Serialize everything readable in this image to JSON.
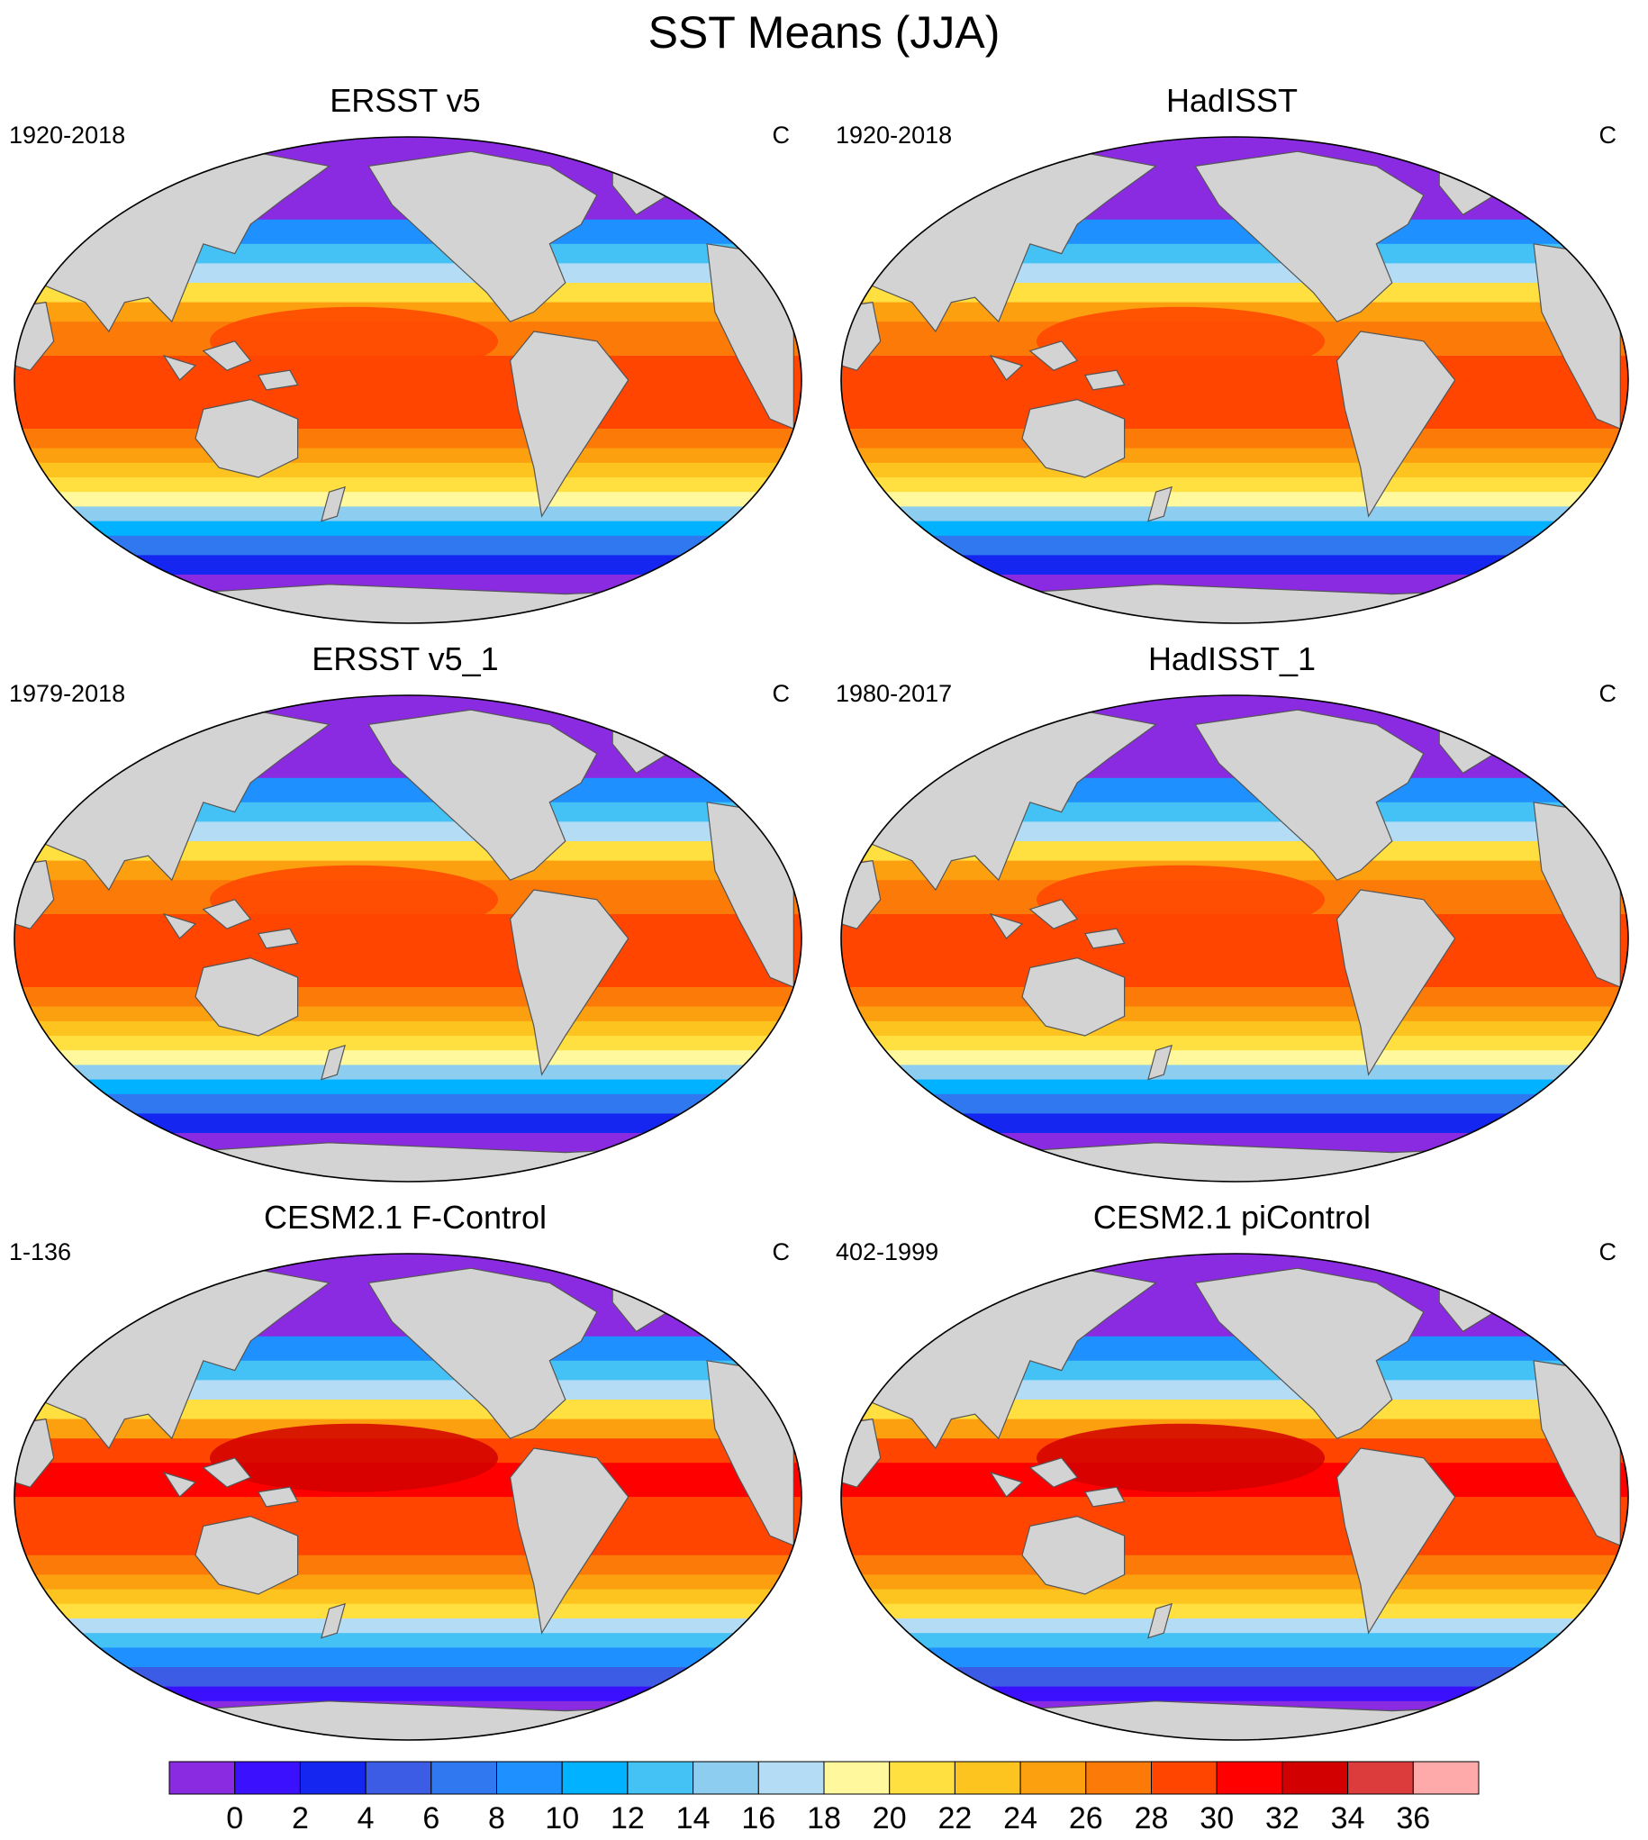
{
  "figure": {
    "title": "SST Means (JJA)"
  },
  "panels": [
    {
      "title": "ERSST v5",
      "left_label": "1920-2018",
      "right_label": "C",
      "style": "obs"
    },
    {
      "title": "HadISST",
      "left_label": "1920-2018",
      "right_label": "C",
      "style": "obs"
    },
    {
      "title": "ERSST v5_1",
      "left_label": "1979-2018",
      "right_label": "C",
      "style": "obs"
    },
    {
      "title": "HadISST_1",
      "left_label": "1980-2017",
      "right_label": "C",
      "style": "obs"
    },
    {
      "title": "CESM2.1 F-Control",
      "left_label": "1-136",
      "right_label": "C",
      "style": "model"
    },
    {
      "title": "CESM2.1 piControl",
      "left_label": "402-1999",
      "right_label": "C",
      "style": "model"
    }
  ],
  "colorbar": {
    "levels": [
      "0",
      "2",
      "4",
      "6",
      "8",
      "10",
      "12",
      "14",
      "16",
      "18",
      "20",
      "22",
      "24",
      "26",
      "28",
      "30",
      "32",
      "34",
      "36"
    ],
    "colors": [
      "#8a2be2",
      "#3a10ff",
      "#1426f0",
      "#3c5ce6",
      "#2f78f0",
      "#1e90ff",
      "#00b2ff",
      "#44c2f5",
      "#8ccdf0",
      "#b4dcf5",
      "#fff89c",
      "#ffe040",
      "#fdc420",
      "#fca010",
      "#fc7a08",
      "#ff4500",
      "#ff0000",
      "#d20000",
      "#dc3c3c",
      "#ffaaaa"
    ]
  },
  "map_colors": {
    "land": "#d3d3d3",
    "land_outline": "#555555",
    "ocean_cold": "#8a2be2",
    "ocean_warm": "#ff4500"
  }
}
